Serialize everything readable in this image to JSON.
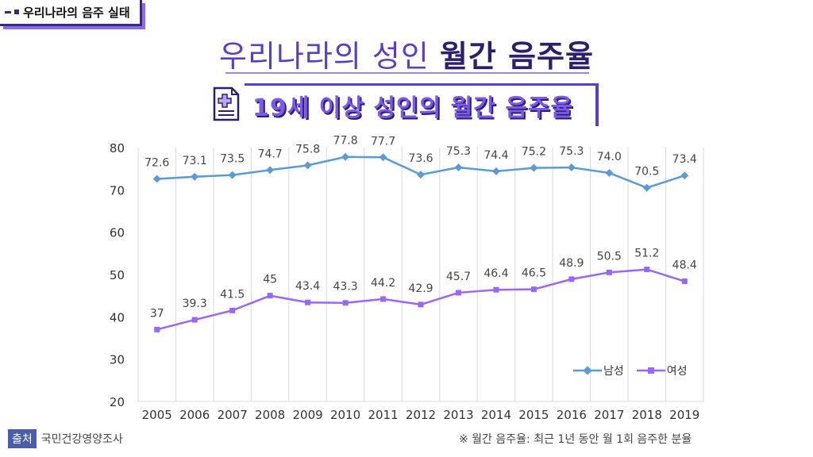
{
  "corner_tag": "우리나라의 음주 실태",
  "title": {
    "light": "우리나라의 성인",
    "bold": "월간 음주율"
  },
  "subtitle": "19세 이상 성인의 월간 음주율",
  "source": {
    "badge": "출처",
    "text": "국민건강영양조사"
  },
  "note": "※ 월간 음주율:  최근 1년 동안 월 1회 음주한 분율",
  "colors": {
    "male": "#5b9bd5",
    "female": "#9966ff",
    "accent": "#5a3fc4"
  },
  "chart_data": {
    "type": "line",
    "categories": [
      "2005",
      "2006",
      "2007",
      "2008",
      "2009",
      "2010",
      "2011",
      "2012",
      "2013",
      "2014",
      "2015",
      "2016",
      "2017",
      "2018",
      "2019"
    ],
    "ylim": [
      20,
      80
    ],
    "yticks": [
      20,
      30,
      40,
      50,
      60,
      70,
      80
    ],
    "grid": "vertical",
    "legend": "bottom-right",
    "series": [
      {
        "name": "남성",
        "values": [
          72.6,
          73.1,
          73.5,
          74.7,
          75.8,
          77.8,
          77.7,
          73.6,
          75.3,
          74.4,
          75.2,
          75.3,
          74.0,
          70.5,
          73.4
        ],
        "labels": [
          "72.6",
          "73.1",
          "73.5",
          "74.7",
          "75.8",
          "77.8",
          "77.7",
          "73.6",
          "75.3",
          "74.4",
          "75.2",
          "75.3",
          "74.0",
          "70.5",
          "73.4"
        ]
      },
      {
        "name": "여성",
        "values": [
          37,
          39.3,
          41.5,
          45,
          43.4,
          43.3,
          44.2,
          42.9,
          45.7,
          46.4,
          46.5,
          48.9,
          50.5,
          51.2,
          48.4
        ],
        "labels": [
          "37",
          "39.3",
          "41.5",
          "45",
          "43.4",
          "43.3",
          "44.2",
          "42.9",
          "45.7",
          "46.4",
          "46.5",
          "48.9",
          "50.5",
          "51.2",
          "48.4"
        ]
      }
    ]
  }
}
